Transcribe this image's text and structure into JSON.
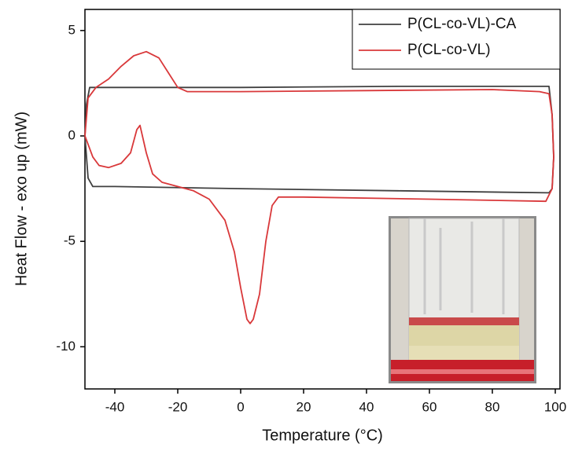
{
  "chart_data": {
    "type": "line",
    "xlabel": "Temperature (°C)",
    "ylabel": "Heat Flow - exo up (mW)",
    "xlim": [
      -49.5,
      101.5
    ],
    "xticks": [
      -40,
      -20,
      0,
      20,
      40,
      60,
      80,
      100
    ],
    "ylim": [
      -12,
      6
    ],
    "yticks": [
      -10,
      -5,
      0,
      5
    ],
    "legend": "upper right",
    "series": [
      {
        "name": "P(CL-co-VL)-CA",
        "color": "#404040",
        "x": [
          -49.5,
          -49,
          -48,
          -40,
          0,
          50,
          98,
          99,
          99.5,
          99,
          98,
          50,
          0,
          -40,
          -47,
          -48.5,
          -49.5
        ],
        "values": [
          0,
          1.5,
          2.3,
          2.3,
          2.3,
          2.35,
          2.35,
          1,
          -1,
          -2.5,
          -2.7,
          -2.6,
          -2.5,
          -2.4,
          -2.4,
          -2,
          0
        ]
      },
      {
        "name": "P(CL-co-VL)",
        "color": "#d9383a",
        "x": [
          -49.5,
          -48.5,
          -46,
          -42,
          -38,
          -34,
          -30,
          -26,
          -23,
          -20,
          -17,
          0,
          40,
          80,
          95,
          98,
          99,
          99.5,
          99,
          97,
          60,
          20,
          12,
          10,
          8,
          6,
          4,
          3,
          2,
          0,
          -2,
          -5,
          -10,
          -15,
          -20,
          -25,
          -28,
          -30,
          -32,
          -33,
          -35,
          -38,
          -42,
          -45,
          -47,
          -48.5,
          -49.5
        ],
        "values": [
          0,
          1.8,
          2.3,
          2.7,
          3.3,
          3.8,
          4.0,
          3.7,
          3.0,
          2.3,
          2.1,
          2.1,
          2.15,
          2.2,
          2.1,
          2.0,
          1.0,
          -1.0,
          -2.5,
          -3.1,
          -3.0,
          -2.9,
          -2.9,
          -3.3,
          -5.0,
          -7.5,
          -8.7,
          -8.9,
          -8.7,
          -7.2,
          -5.5,
          -4.0,
          -3.0,
          -2.6,
          -2.4,
          -2.2,
          -1.8,
          -0.8,
          0.5,
          0.3,
          -0.8,
          -1.3,
          -1.5,
          -1.4,
          -1.0,
          -0.4,
          0
        ]
      }
    ]
  }
}
